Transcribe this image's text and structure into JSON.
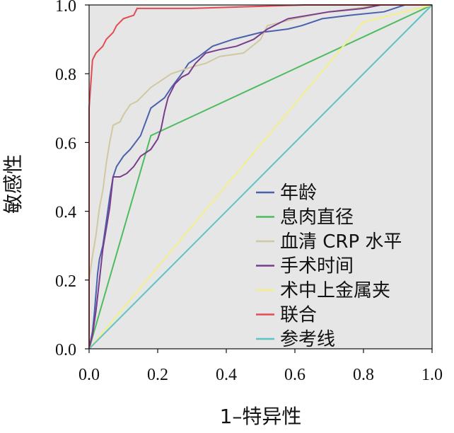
{
  "chart_data": {
    "type": "line",
    "title": "",
    "xlabel": "1–特异性",
    "ylabel": "敏感性",
    "xlim": [
      0,
      1
    ],
    "ylim": [
      0,
      1
    ],
    "xticks": [
      "0.0",
      "0.2",
      "0.4",
      "0.6",
      "0.8",
      "1.0"
    ],
    "yticks": [
      "0.0",
      "0.2",
      "0.4",
      "0.6",
      "0.8",
      "1.0"
    ],
    "grid": false,
    "legend_position": "bottom-right",
    "plot_background": "#e6e6e6",
    "series": [
      {
        "name": "年龄",
        "color": "#4a62ad",
        "points": [
          [
            0,
            0
          ],
          [
            0.01,
            0.05
          ],
          [
            0.015,
            0.1
          ],
          [
            0.02,
            0.16
          ],
          [
            0.025,
            0.22
          ],
          [
            0.03,
            0.26
          ],
          [
            0.04,
            0.3
          ],
          [
            0.05,
            0.37
          ],
          [
            0.06,
            0.44
          ],
          [
            0.07,
            0.5
          ],
          [
            0.08,
            0.53
          ],
          [
            0.1,
            0.56
          ],
          [
            0.12,
            0.58
          ],
          [
            0.15,
            0.62
          ],
          [
            0.18,
            0.7
          ],
          [
            0.22,
            0.73
          ],
          [
            0.24,
            0.76
          ],
          [
            0.27,
            0.8
          ],
          [
            0.29,
            0.83
          ],
          [
            0.32,
            0.85
          ],
          [
            0.36,
            0.88
          ],
          [
            0.42,
            0.9
          ],
          [
            0.5,
            0.92
          ],
          [
            0.58,
            0.93
          ],
          [
            0.62,
            0.94
          ],
          [
            0.68,
            0.96
          ],
          [
            0.76,
            0.97
          ],
          [
            0.86,
            0.98
          ],
          [
            0.92,
            1.0
          ],
          [
            1,
            1
          ]
        ]
      },
      {
        "name": "息肉直径",
        "color": "#4dbb5f",
        "points": [
          [
            0,
            0
          ],
          [
            0.18,
            0.62
          ],
          [
            1,
            1
          ]
        ]
      },
      {
        "name": "血清 CRP 水平",
        "color": "#cfc8a0",
        "points": [
          [
            0,
            0
          ],
          [
            0,
            0.2
          ],
          [
            0.01,
            0.27
          ],
          [
            0.02,
            0.33
          ],
          [
            0.03,
            0.41
          ],
          [
            0.04,
            0.46
          ],
          [
            0.05,
            0.54
          ],
          [
            0.06,
            0.6
          ],
          [
            0.07,
            0.65
          ],
          [
            0.09,
            0.66
          ],
          [
            0.1,
            0.68
          ],
          [
            0.12,
            0.71
          ],
          [
            0.14,
            0.72
          ],
          [
            0.16,
            0.74
          ],
          [
            0.18,
            0.76
          ],
          [
            0.21,
            0.78
          ],
          [
            0.24,
            0.8
          ],
          [
            0.27,
            0.81
          ],
          [
            0.3,
            0.82
          ],
          [
            0.34,
            0.83
          ],
          [
            0.38,
            0.85
          ],
          [
            0.45,
            0.86
          ],
          [
            0.5,
            0.9
          ],
          [
            0.52,
            0.94
          ],
          [
            0.6,
            0.96
          ],
          [
            0.7,
            0.98
          ],
          [
            0.78,
            0.99
          ],
          [
            0.84,
            1.0
          ],
          [
            1,
            1
          ]
        ]
      },
      {
        "name": "手术时间",
        "color": "#7a3c8c",
        "points": [
          [
            0,
            0
          ],
          [
            0.01,
            0.04
          ],
          [
            0.02,
            0.11
          ],
          [
            0.03,
            0.2
          ],
          [
            0.04,
            0.29
          ],
          [
            0.05,
            0.35
          ],
          [
            0.06,
            0.41
          ],
          [
            0.07,
            0.5
          ],
          [
            0.09,
            0.5
          ],
          [
            0.11,
            0.51
          ],
          [
            0.13,
            0.53
          ],
          [
            0.15,
            0.56
          ],
          [
            0.18,
            0.58
          ],
          [
            0.2,
            0.61
          ],
          [
            0.21,
            0.64
          ],
          [
            0.22,
            0.69
          ],
          [
            0.23,
            0.73
          ],
          [
            0.25,
            0.77
          ],
          [
            0.27,
            0.79
          ],
          [
            0.29,
            0.8
          ],
          [
            0.31,
            0.83
          ],
          [
            0.34,
            0.86
          ],
          [
            0.38,
            0.87
          ],
          [
            0.43,
            0.88
          ],
          [
            0.48,
            0.9
          ],
          [
            0.52,
            0.93
          ],
          [
            0.58,
            0.96
          ],
          [
            0.7,
            0.98
          ],
          [
            0.8,
            0.99
          ],
          [
            0.85,
            1.0
          ],
          [
            1,
            1
          ]
        ]
      },
      {
        "name": "术中上金属夹",
        "color": "#f2ef8a",
        "points": [
          [
            0,
            0
          ],
          [
            0.8,
            0.95
          ],
          [
            1,
            1
          ]
        ]
      },
      {
        "name": "联合",
        "color": "#e34b53",
        "points": [
          [
            0,
            0
          ],
          [
            0,
            0.7
          ],
          [
            0.01,
            0.84
          ],
          [
            0.02,
            0.86
          ],
          [
            0.04,
            0.88
          ],
          [
            0.05,
            0.9
          ],
          [
            0.07,
            0.92
          ],
          [
            0.08,
            0.94
          ],
          [
            0.1,
            0.96
          ],
          [
            0.13,
            0.97
          ],
          [
            0.14,
            0.99
          ],
          [
            0.3,
            0.99
          ],
          [
            0.63,
            1.0
          ],
          [
            1,
            1
          ]
        ]
      },
      {
        "name": "参考线",
        "color": "#5cc4c4",
        "points": [
          [
            0,
            0
          ],
          [
            1,
            1
          ]
        ]
      }
    ]
  }
}
